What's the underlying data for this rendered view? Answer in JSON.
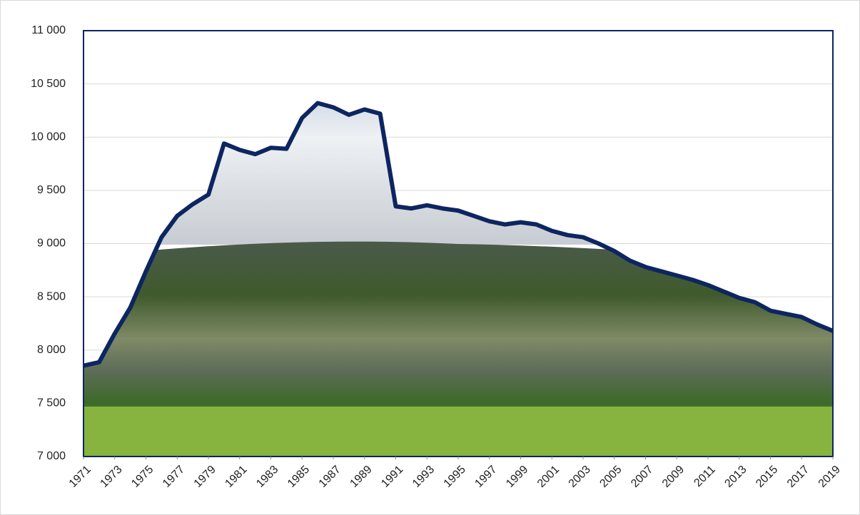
{
  "chart_data": {
    "type": "area",
    "x": [
      1971,
      1972,
      1973,
      1974,
      1975,
      1976,
      1977,
      1978,
      1979,
      1980,
      1981,
      1982,
      1983,
      1984,
      1985,
      1986,
      1987,
      1988,
      1989,
      1990,
      1991,
      1992,
      1993,
      1994,
      1995,
      1996,
      1997,
      1998,
      1999,
      2000,
      2001,
      2002,
      2003,
      2004,
      2005,
      2006,
      2007,
      2008,
      2009,
      2010,
      2011,
      2012,
      2013,
      2014,
      2015,
      2016,
      2017,
      2018,
      2019
    ],
    "values": [
      7853,
      7886,
      8155,
      8400,
      8740,
      9060,
      9260,
      9370,
      9460,
      9940,
      9880,
      9840,
      9900,
      9890,
      10180,
      10320,
      10280,
      10210,
      10260,
      10220,
      9350,
      9330,
      9360,
      9330,
      9310,
      9260,
      9210,
      9180,
      9200,
      9180,
      9120,
      9080,
      9060,
      9000,
      8930,
      8840,
      8780,
      8740,
      8700,
      8660,
      8610,
      8550,
      8490,
      8450,
      8370,
      8340,
      8310,
      8240,
      8180
    ],
    "color": "#0d2560",
    "xlim": [
      1971,
      2019
    ],
    "xticks": [
      1971,
      1973,
      1975,
      1977,
      1979,
      1981,
      1983,
      1985,
      1987,
      1989,
      1991,
      1993,
      1995,
      1997,
      1999,
      2001,
      2003,
      2005,
      2007,
      2009,
      2011,
      2013,
      2015,
      2017,
      2019
    ],
    "ylim": [
      7000,
      11000
    ],
    "yticks": [
      {
        "value": 7000,
        "label": "7 000"
      },
      {
        "value": 7500,
        "label": "7 500"
      },
      {
        "value": 8000,
        "label": "8 000"
      },
      {
        "value": 8500,
        "label": "8 500"
      },
      {
        "value": 9000,
        "label": "9 000"
      },
      {
        "value": 9500,
        "label": "9 500"
      },
      {
        "value": 10000,
        "label": "10 000"
      },
      {
        "value": 10500,
        "label": "10 500"
      },
      {
        "value": 11000,
        "label": "11 000"
      }
    ],
    "grid": true
  }
}
